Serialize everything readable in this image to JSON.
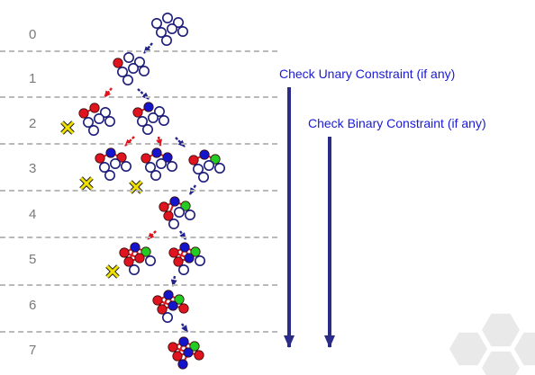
{
  "levels": [
    "0",
    "1",
    "2",
    "3",
    "4",
    "5",
    "6",
    "7"
  ],
  "annotations": {
    "unary": "Check Unary Constraint (if any)",
    "binary": "Check Binary Constraint (if any)"
  },
  "colors": {
    "assigned_red": "#e0141e",
    "assigned_blue": "#1414cc",
    "assigned_green": "#22cc22",
    "unassigned_outline": "#1c1c7a",
    "edge": "#e0141e",
    "arrow_ok": "#23238c",
    "arrow_backtrack": "#e0141e",
    "fail_mark": "#f0e000",
    "divider": "#b9b9b9",
    "level_text": "#7a7a7a",
    "note_text": "#1a1ad6",
    "watermark": "#e9e9e9"
  },
  "icons": {
    "failure": "yellow-x-cross-icon",
    "watermark": "hexagon-cluster-logo"
  },
  "tree_nodes": [
    {
      "id": "n0",
      "level": 0,
      "assignment": [
        "u",
        "u",
        "u",
        "u",
        "u",
        "u",
        "u"
      ]
    },
    {
      "id": "n1",
      "level": 1,
      "assignment": [
        "r",
        "u",
        "u",
        "u",
        "u",
        "u",
        "u"
      ]
    },
    {
      "id": "n2a",
      "level": 2,
      "assignment": [
        "r",
        "r",
        "u",
        "u",
        "u",
        "u",
        "u"
      ],
      "failed": true
    },
    {
      "id": "n2b",
      "level": 2,
      "assignment": [
        "r",
        "b",
        "u",
        "u",
        "u",
        "u",
        "u"
      ]
    },
    {
      "id": "n3a",
      "level": 3,
      "assignment": [
        "r",
        "b",
        "r",
        "u",
        "u",
        "u",
        "u"
      ],
      "failed": true
    },
    {
      "id": "n3b",
      "level": 3,
      "assignment": [
        "r",
        "b",
        "b",
        "u",
        "u",
        "u",
        "u"
      ],
      "failed": true
    },
    {
      "id": "n3c",
      "level": 3,
      "assignment": [
        "r",
        "b",
        "g",
        "u",
        "u",
        "u",
        "u"
      ]
    },
    {
      "id": "n4",
      "level": 4,
      "assignment": [
        "r",
        "b",
        "g",
        "r",
        "u",
        "u",
        "u"
      ]
    },
    {
      "id": "n5a",
      "level": 5,
      "assignment": [
        "r",
        "b",
        "g",
        "r",
        "r",
        "u",
        "u"
      ],
      "failed": true
    },
    {
      "id": "n5b",
      "level": 5,
      "assignment": [
        "r",
        "b",
        "g",
        "r",
        "b",
        "u",
        "u"
      ]
    },
    {
      "id": "n6",
      "level": 6,
      "assignment": [
        "r",
        "b",
        "g",
        "r",
        "b",
        "r",
        "u"
      ]
    },
    {
      "id": "n7",
      "level": 7,
      "assignment": [
        "r",
        "b",
        "g",
        "r",
        "b",
        "r",
        "b"
      ]
    }
  ]
}
